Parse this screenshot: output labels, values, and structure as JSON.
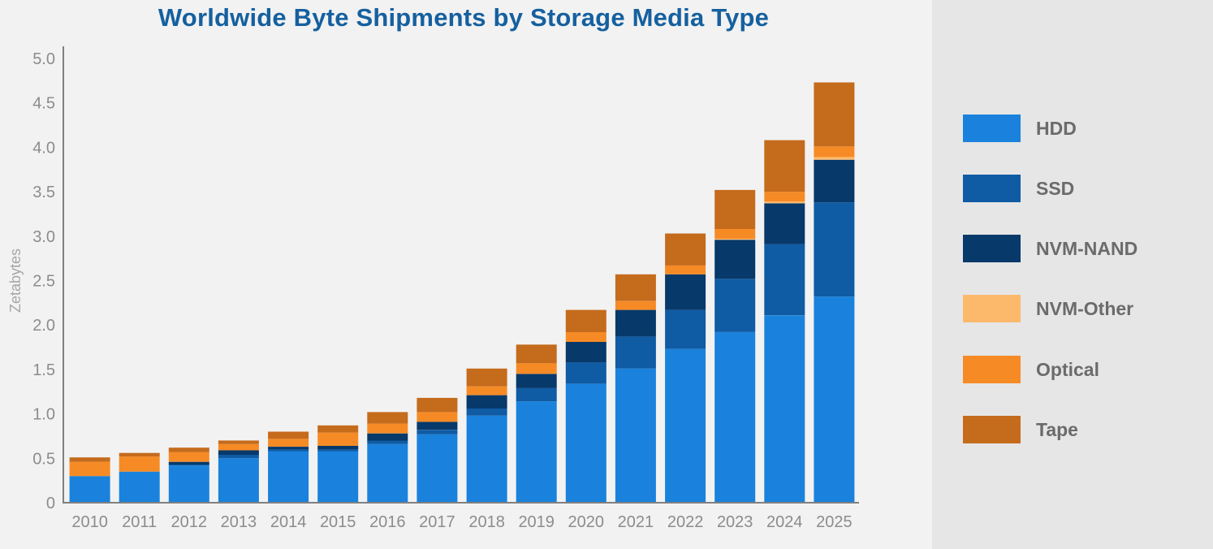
{
  "chart_data": {
    "type": "bar",
    "stacked": true,
    "title": "Worldwide Byte Shipments by Storage Media Type",
    "xlabel": "",
    "ylabel": "Zetabytes",
    "ylim": [
      0,
      5.0
    ],
    "yticks": [
      0,
      0.5,
      1.0,
      1.5,
      2.0,
      2.5,
      3.0,
      3.5,
      4.0,
      4.5,
      5.0
    ],
    "ytick_labels": [
      "0",
      "0.5",
      "1.0",
      "1.5",
      "2.0",
      "2.5",
      "3.0",
      "3.5",
      "4.0",
      "4.5",
      "5.0"
    ],
    "grid": false,
    "legend_position": "right",
    "categories": [
      "2010",
      "2011",
      "2012",
      "2013",
      "2014",
      "2015",
      "2016",
      "2017",
      "2018",
      "2019",
      "2020",
      "2021",
      "2022",
      "2023",
      "2024",
      "2025"
    ],
    "series": [
      {
        "name": "HDD",
        "color": "#1a82dc",
        "values": [
          0.3,
          0.35,
          0.42,
          0.5,
          0.58,
          0.58,
          0.66,
          0.77,
          0.98,
          1.14,
          1.34,
          1.51,
          1.73,
          1.92,
          2.11,
          2.32
        ]
      },
      {
        "name": "SSD",
        "color": "#0f5ba4",
        "values": [
          0.0,
          0.0,
          0.01,
          0.04,
          0.02,
          0.02,
          0.04,
          0.05,
          0.08,
          0.15,
          0.24,
          0.36,
          0.44,
          0.6,
          0.8,
          1.06
        ]
      },
      {
        "name": "NVM-NAND",
        "color": "#07396a",
        "values": [
          0.0,
          0.0,
          0.03,
          0.05,
          0.03,
          0.04,
          0.08,
          0.09,
          0.15,
          0.16,
          0.23,
          0.3,
          0.4,
          0.44,
          0.46,
          0.48
        ]
      },
      {
        "name": "NVM-Other",
        "color": "#fcb96c",
        "values": [
          0.0,
          0.0,
          0.0,
          0.0,
          0.0,
          0.0,
          0.0,
          0.0,
          0.0,
          0.0,
          0.0,
          0.0,
          0.0,
          0.01,
          0.02,
          0.03
        ]
      },
      {
        "name": "Optical",
        "color": "#f68b26",
        "values": [
          0.16,
          0.17,
          0.11,
          0.07,
          0.09,
          0.15,
          0.11,
          0.11,
          0.1,
          0.12,
          0.11,
          0.1,
          0.1,
          0.11,
          0.11,
          0.12
        ]
      },
      {
        "name": "Tape",
        "color": "#c56b1c",
        "values": [
          0.05,
          0.04,
          0.05,
          0.04,
          0.08,
          0.08,
          0.13,
          0.16,
          0.2,
          0.21,
          0.25,
          0.3,
          0.36,
          0.44,
          0.58,
          0.72
        ]
      }
    ]
  }
}
